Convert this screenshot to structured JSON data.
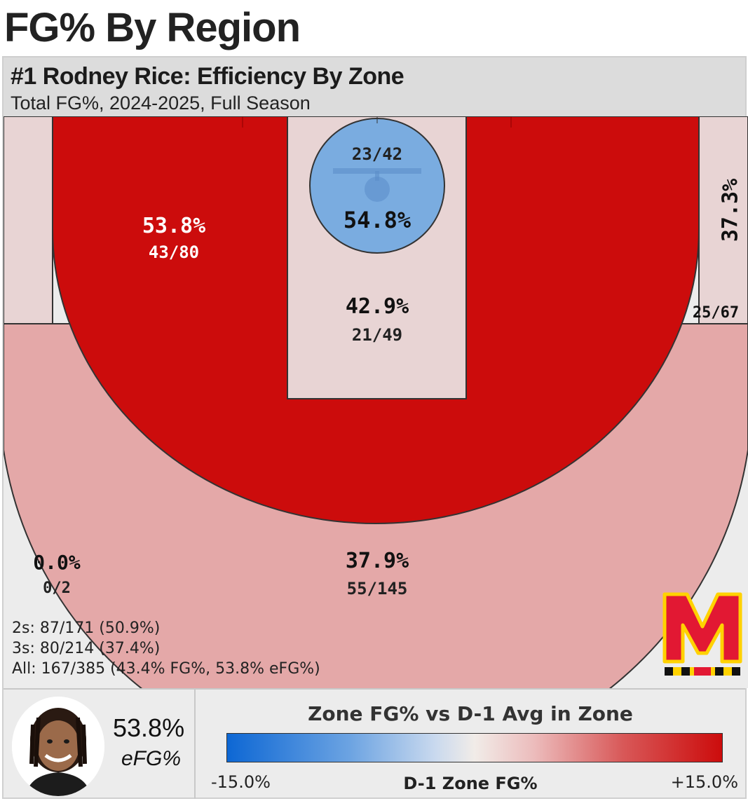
{
  "page": {
    "title": "FG% By Region"
  },
  "chart_data": {
    "type": "heatmap",
    "title": "#1 Rodney Rice: Efficiency By Zone",
    "subtitle": "Total FG%, 2024-2025, Full Season",
    "zones": [
      {
        "zone": "Rim",
        "fg_pct": "54.8%",
        "made_attempts": "23/42",
        "made": 23,
        "attempts": 42,
        "color": "#7aace0"
      },
      {
        "zone": "Paint (Non-Rim)",
        "fg_pct": "42.9%",
        "made_attempts": "21/49",
        "made": 21,
        "attempts": 49,
        "color": "#e8d4d4"
      },
      {
        "zone": "Mid-Range",
        "fg_pct": "53.8%",
        "made_attempts": "43/80",
        "made": 43,
        "attempts": 80,
        "color": "#cc0c0c"
      },
      {
        "zone": "Corner 3",
        "fg_pct": "37.3%",
        "made_attempts": "25/67",
        "made": 25,
        "attempts": 67,
        "color": "#e8d4d4"
      },
      {
        "zone": "Above-Break 3",
        "fg_pct": "37.9%",
        "made_attempts": "55/145",
        "made": 55,
        "attempts": 145,
        "color": "#e4a8a8"
      },
      {
        "zone": "Long 3",
        "fg_pct": "0.0%",
        "made_attempts": "0/2",
        "made": 0,
        "attempts": 2,
        "color": "#ececec"
      }
    ],
    "totals": {
      "twos": "2s: 87/171 (50.9%)",
      "threes": "3s: 80/214 (37.4%)",
      "all": "All: 167/385 (43.4% FG%, 53.8% eFG%)"
    },
    "legend": {
      "title": "Zone FG% vs D-1 Avg in Zone",
      "min": "-15.0%",
      "max": "+15.0%",
      "mid_label": "D-1 Zone FG%",
      "low_color": "#0d67d4",
      "mid_color": "#f1ece8",
      "high_color": "#cc0c0c"
    }
  },
  "player": {
    "efg_value": "53.8%",
    "efg_label": "eFG%"
  },
  "logo": {
    "name": "maryland-m-logo",
    "color": "#e21833",
    "accent": "#ffd200"
  }
}
